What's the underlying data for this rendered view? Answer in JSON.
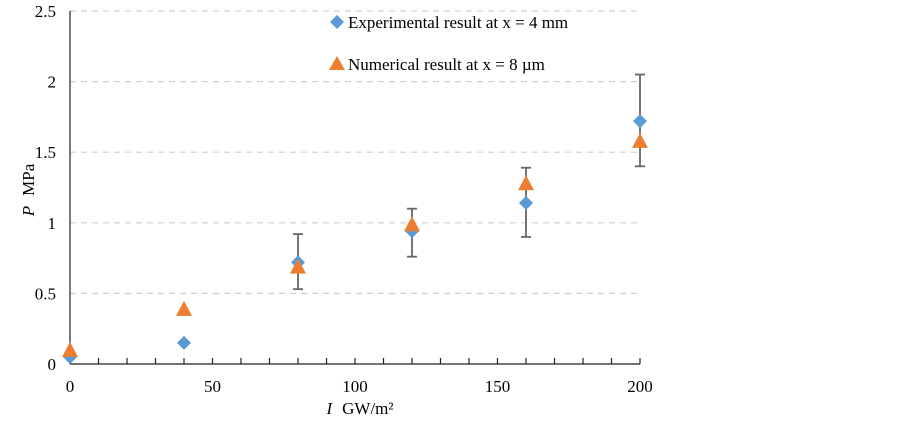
{
  "chart_data": {
    "type": "scatter",
    "title": "",
    "xlabel_var": "I",
    "xlabel_unit": "GW/m²",
    "ylabel_var": "P",
    "ylabel_unit": "MPa",
    "xlim": [
      0,
      200
    ],
    "ylim": [
      0,
      2.5
    ],
    "xticks": [
      0,
      50,
      100,
      150,
      200
    ],
    "xtick_labels": [
      "0",
      "50",
      "100",
      "150",
      "200"
    ],
    "yticks": [
      0,
      0.5,
      1,
      1.5,
      2,
      2.5
    ],
    "ytick_labels": [
      "0",
      "0.5",
      "1",
      "1.5",
      "2",
      "2.5"
    ],
    "grid": "horizontal dashed",
    "legend_position": "top-right",
    "series": [
      {
        "name": "Experimental result at x = 4 mm",
        "marker": "diamond",
        "color": "#5B9BD5",
        "x": [
          0,
          40,
          80,
          120,
          160,
          200
        ],
        "y": [
          0.05,
          0.15,
          0.72,
          0.94,
          1.14,
          1.72
        ],
        "err_low": [
          null,
          0.14,
          0.53,
          0.76,
          0.9,
          1.4
        ],
        "err_high": [
          null,
          0.16,
          0.92,
          1.1,
          1.39,
          2.05
        ]
      },
      {
        "name": "Numerical result at x = 8 µm",
        "marker": "triangle",
        "color": "#ED7D31",
        "x": [
          0,
          40,
          80,
          120,
          160,
          200
        ],
        "y": [
          0.1,
          0.39,
          0.69,
          0.99,
          1.28,
          1.58
        ]
      }
    ]
  }
}
